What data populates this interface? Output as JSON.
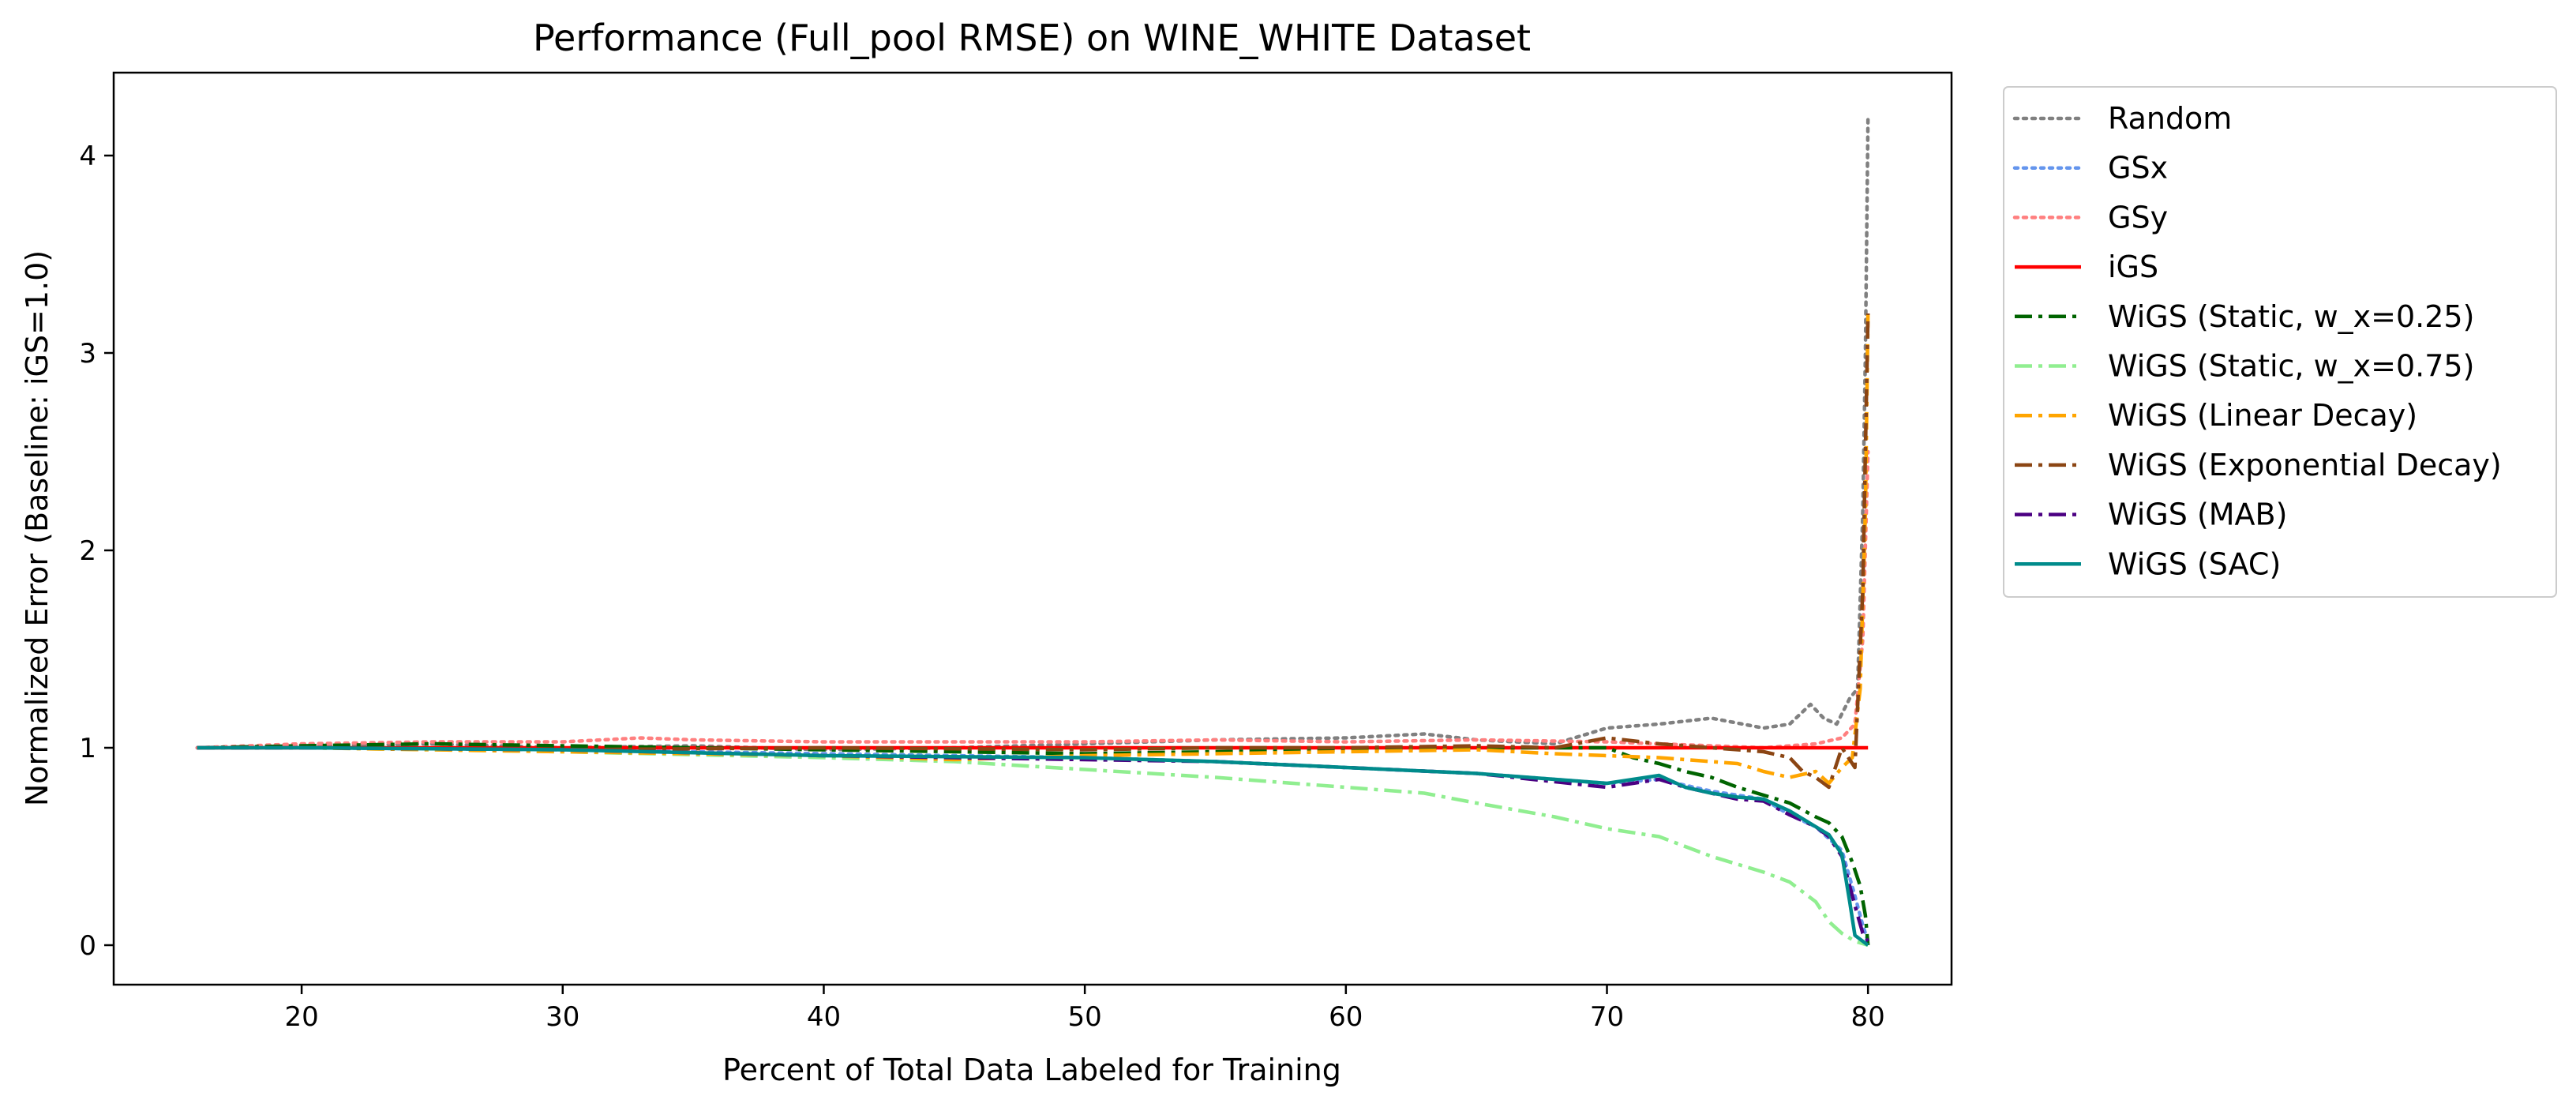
{
  "chart_data": {
    "type": "line",
    "title": "Performance (Full_pool RMSE) on WINE_WHITE Dataset",
    "xlabel": "Percent of Total Data Labeled for Training",
    "ylabel": "Normalized Error (Baseline: iGS=1.0)",
    "xlim": [
      12.8,
      83.2
    ],
    "ylim": [
      -0.2,
      4.42
    ],
    "xticks": [
      20,
      30,
      40,
      50,
      60,
      70,
      80
    ],
    "yticks": [
      0,
      1,
      2,
      3,
      4
    ],
    "grid": false,
    "legend_position": "outside-right",
    "series": [
      {
        "name": "Random",
        "color": "#808080",
        "linestyle": "dotted",
        "x": [
          16,
          20,
          25,
          30,
          35,
          40,
          45,
          50,
          55,
          60,
          63,
          65,
          68,
          70,
          72,
          74,
          76,
          77,
          77.8,
          78.3,
          78.8,
          79.3,
          79.6,
          79.8,
          79.9,
          80
        ],
        "y": [
          1.0,
          1.01,
          1.02,
          1.0,
          1.01,
          0.99,
          1.0,
          1.02,
          1.04,
          1.05,
          1.07,
          1.04,
          1.02,
          1.1,
          1.12,
          1.15,
          1.1,
          1.12,
          1.22,
          1.15,
          1.12,
          1.25,
          1.3,
          2.2,
          3.0,
          4.2
        ]
      },
      {
        "name": "GSx",
        "color": "#6495ED",
        "linestyle": "dotted",
        "x": [
          16,
          20,
          30,
          40,
          50,
          55,
          60,
          65,
          70,
          72,
          74,
          76,
          77,
          78,
          79,
          79.5,
          79.8,
          80
        ],
        "y": [
          1.0,
          1.0,
          0.99,
          0.97,
          0.95,
          0.93,
          0.9,
          0.87,
          0.82,
          0.84,
          0.78,
          0.74,
          0.66,
          0.6,
          0.48,
          0.25,
          0.1,
          0.02
        ]
      },
      {
        "name": "GSy",
        "color": "#FF7F7F",
        "linestyle": "dotted",
        "x": [
          16,
          20,
          25,
          30,
          33,
          35,
          40,
          45,
          50,
          55,
          60,
          65,
          70,
          72,
          74,
          76,
          78,
          79,
          79.5,
          79.8,
          80
        ],
        "y": [
          1.0,
          1.02,
          1.03,
          1.03,
          1.05,
          1.04,
          1.03,
          1.03,
          1.03,
          1.04,
          1.03,
          1.04,
          1.03,
          1.02,
          1.01,
          1.0,
          1.02,
          1.05,
          1.12,
          1.55,
          2.5
        ]
      },
      {
        "name": "iGS",
        "color": "#FF0000",
        "linestyle": "solid",
        "x": [
          16,
          80
        ],
        "y": [
          1.0,
          1.0
        ]
      },
      {
        "name": "WiGS (Static, w_x=0.25)",
        "color": "#006400",
        "linestyle": "dashdot",
        "x": [
          16,
          20,
          25,
          30,
          35,
          40,
          45,
          50,
          55,
          60,
          65,
          68,
          70,
          71,
          72,
          73,
          74,
          75,
          76,
          77,
          78,
          78.5,
          79,
          79.4,
          79.7,
          79.9,
          80
        ],
        "y": [
          1.0,
          1.01,
          1.02,
          1.01,
          1.0,
          0.99,
          0.98,
          0.97,
          0.98,
          0.99,
          1.0,
          1.0,
          1.0,
          0.95,
          0.92,
          0.88,
          0.85,
          0.8,
          0.76,
          0.72,
          0.65,
          0.62,
          0.55,
          0.42,
          0.3,
          0.15,
          0.0
        ]
      },
      {
        "name": "WiGS (Static, w_x=0.75)",
        "color": "#90EE90",
        "linestyle": "dashdot",
        "x": [
          16,
          20,
          30,
          40,
          45,
          50,
          55,
          60,
          63,
          65,
          68,
          70,
          72,
          74,
          76,
          77,
          78,
          78.5,
          79,
          79.5,
          80
        ],
        "y": [
          1.0,
          1.0,
          0.98,
          0.95,
          0.93,
          0.89,
          0.85,
          0.8,
          0.77,
          0.72,
          0.65,
          0.59,
          0.55,
          0.45,
          0.37,
          0.32,
          0.22,
          0.12,
          0.06,
          0.02,
          0.0
        ]
      },
      {
        "name": "WiGS (Linear Decay)",
        "color": "#FFA500",
        "linestyle": "dashdot",
        "x": [
          16,
          20,
          30,
          40,
          45,
          50,
          55,
          60,
          65,
          68,
          70,
          72,
          74,
          75,
          76,
          77,
          78,
          78.5,
          79,
          79.4,
          79.7,
          79.9,
          80
        ],
        "y": [
          1.0,
          1.0,
          0.98,
          0.96,
          0.94,
          0.96,
          0.97,
          0.98,
          0.99,
          0.97,
          0.96,
          0.95,
          0.93,
          0.92,
          0.88,
          0.85,
          0.88,
          0.82,
          0.9,
          0.95,
          1.3,
          2.2,
          3.2
        ]
      },
      {
        "name": "WiGS (Exponential Decay)",
        "color": "#8B4513",
        "linestyle": "dashdot",
        "x": [
          16,
          20,
          30,
          40,
          50,
          55,
          60,
          65,
          68,
          70,
          72,
          74,
          76,
          77,
          77.5,
          78,
          78.5,
          79,
          79.5,
          79.8,
          80
        ],
        "y": [
          1.0,
          1.0,
          0.99,
          1.0,
          0.99,
          1.0,
          1.0,
          1.01,
          1.0,
          1.05,
          1.02,
          1.0,
          0.98,
          0.95,
          0.88,
          0.85,
          0.8,
          1.0,
          0.9,
          1.8,
          3.2
        ]
      },
      {
        "name": "WiGS (MAB)",
        "color": "#4B0082",
        "linestyle": "dashdot",
        "x": [
          16,
          20,
          30,
          40,
          50,
          55,
          60,
          65,
          70,
          71,
          72,
          73,
          74,
          75,
          76,
          77,
          78,
          78.5,
          79,
          79.5,
          79.8,
          80
        ],
        "y": [
          1.0,
          1.0,
          0.99,
          0.96,
          0.94,
          0.93,
          0.9,
          0.87,
          0.8,
          0.82,
          0.84,
          0.8,
          0.77,
          0.74,
          0.73,
          0.66,
          0.6,
          0.55,
          0.45,
          0.2,
          0.06,
          0.02
        ]
      },
      {
        "name": "WiGS (SAC)",
        "color": "#008B8B",
        "linestyle": "solid",
        "x": [
          16,
          20,
          30,
          40,
          50,
          55,
          60,
          65,
          70,
          71,
          72,
          73,
          74,
          75,
          76,
          77,
          78,
          78.5,
          79,
          79.3,
          79.5,
          79.8,
          80
        ],
        "y": [
          1.0,
          1.0,
          0.99,
          0.96,
          0.95,
          0.93,
          0.9,
          0.87,
          0.82,
          0.84,
          0.86,
          0.8,
          0.77,
          0.75,
          0.74,
          0.68,
          0.6,
          0.56,
          0.46,
          0.22,
          0.05,
          0.02,
          0.0
        ]
      }
    ]
  }
}
